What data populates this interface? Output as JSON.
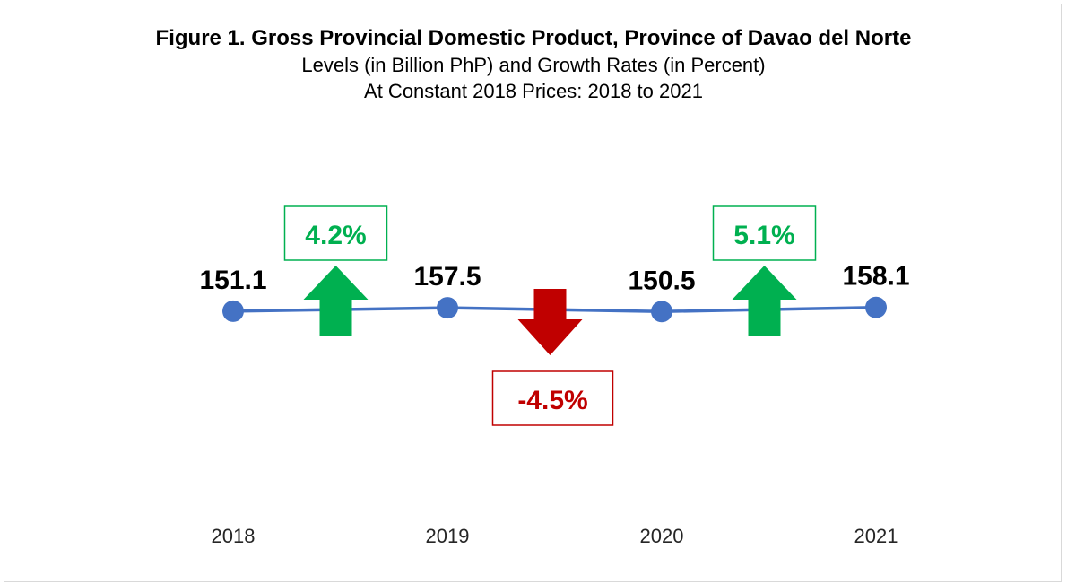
{
  "title": "Figure 1. Gross Provincial Domestic Product, Province of Davao del Norte",
  "subtitle_lines": [
    "Levels (in Billion PhP) and Growth Rates (in Percent)",
    "At Constant 2018 Prices: 2018 to 2021"
  ],
  "colors": {
    "line": "#4472c4",
    "up": "#00b050",
    "down": "#c00000",
    "text": "#000000",
    "axis_text": "#262626"
  },
  "chart_data": {
    "type": "line",
    "x": [
      "2018",
      "2019",
      "2020",
      "2021"
    ],
    "series": [
      {
        "values": [
          151.1,
          157.5,
          150.5,
          158.1
        ],
        "labels": [
          "151.1",
          "157.5",
          "150.5",
          "158.1"
        ]
      }
    ],
    "growth_rates": [
      {
        "between": [
          "2018",
          "2019"
        ],
        "value": 4.2,
        "label": "4.2%",
        "direction": "up"
      },
      {
        "between": [
          "2019",
          "2020"
        ],
        "value": -4.5,
        "label": "-4.5%",
        "direction": "down"
      },
      {
        "between": [
          "2020",
          "2021"
        ],
        "value": 5.1,
        "label": "5.1%",
        "direction": "up"
      }
    ],
    "grid": false,
    "legend": "none"
  }
}
